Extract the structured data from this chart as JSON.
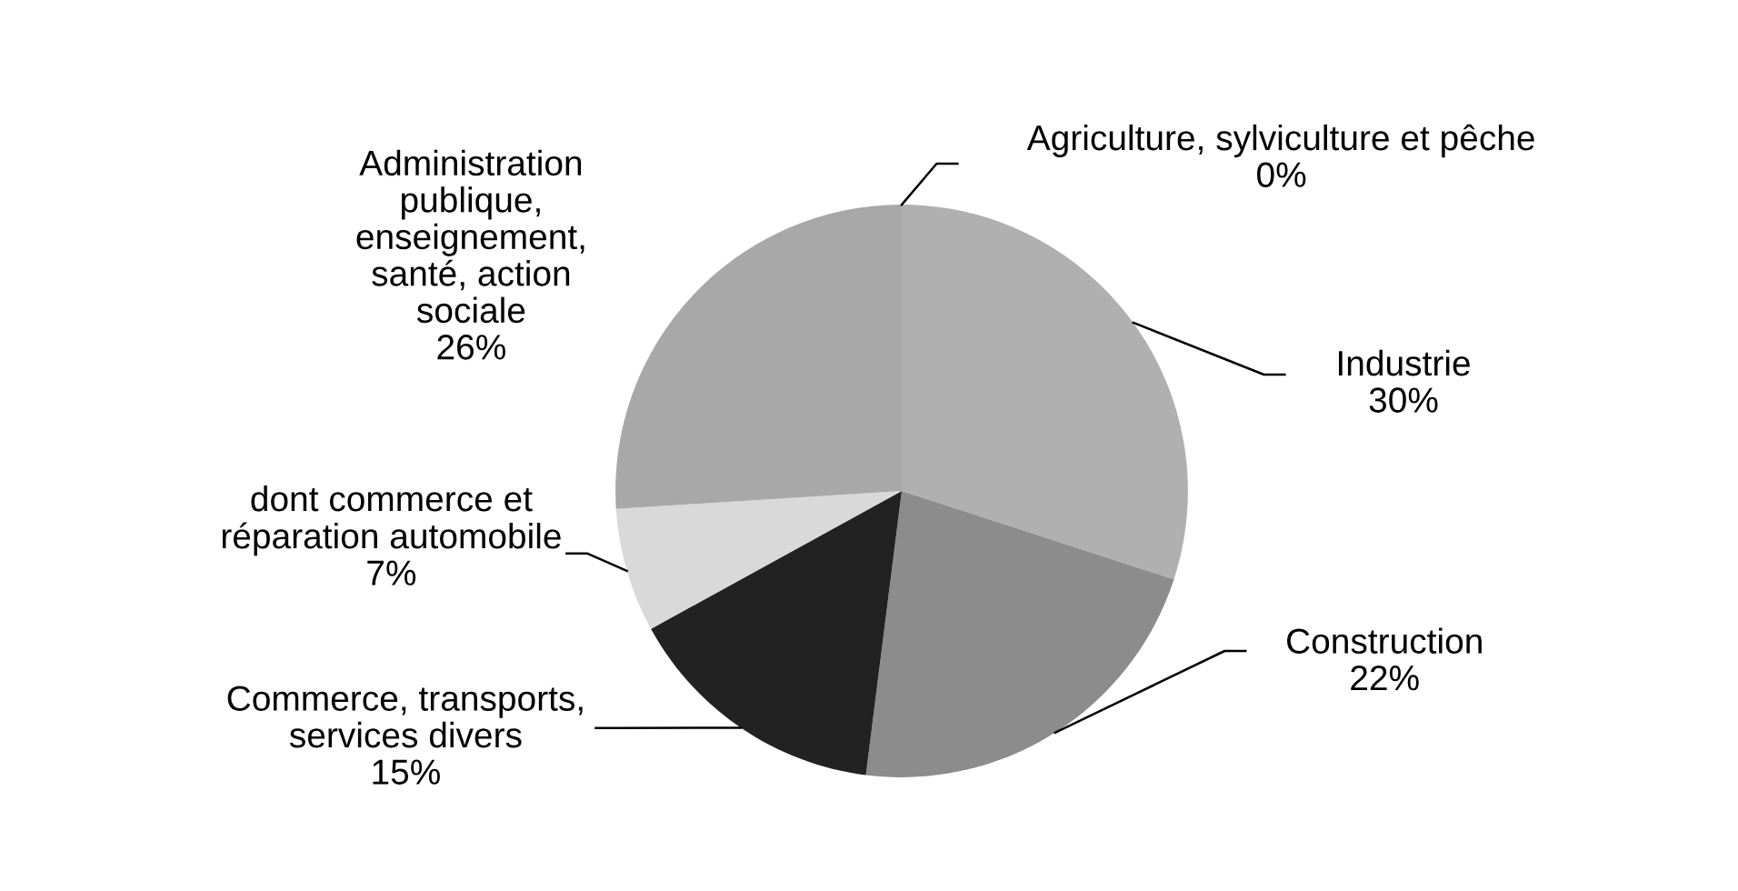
{
  "chart_data": {
    "type": "pie",
    "categories": [
      "Agriculture, sylviculture et pêche",
      "Industrie",
      "Construction",
      "Commerce, transports,\nservices divers",
      "dont commerce et\nréparation automobile",
      "Administration\npublique,\nenseignement,\nsanté, action\nsociale"
    ],
    "values": [
      0,
      30,
      22,
      15,
      7,
      26
    ],
    "value_labels": [
      "0%",
      "30%",
      "22%",
      "15%",
      "7%",
      "26%"
    ],
    "colors": [
      "#c8c8c8",
      "#b0b0b0",
      "#8c8c8c",
      "#222222",
      "#d9d9d9",
      "#a8a8a8"
    ]
  }
}
